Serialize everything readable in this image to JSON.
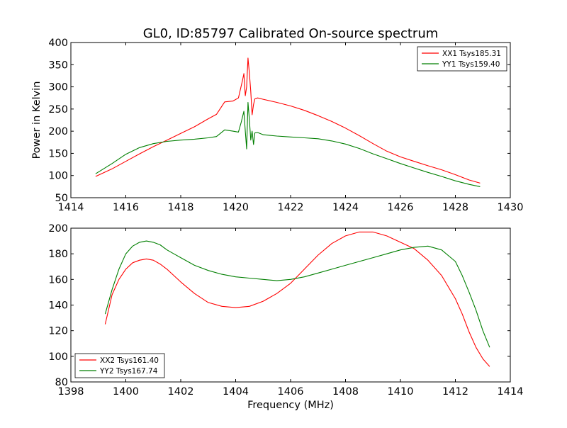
{
  "title": "GL0, ID:85797 Calibrated On-source spectrum",
  "colors": {
    "xx": "#ff0000",
    "yy": "#007f00",
    "frame": "#000000",
    "background": "#ffffff"
  },
  "chart_data": [
    {
      "type": "line",
      "title": "GL0, ID:85797 Calibrated On-source spectrum",
      "xlabel": "",
      "ylabel": "Power in Kelvin",
      "xlim": [
        1414,
        1430
      ],
      "ylim": [
        50,
        400
      ],
      "xticks": [
        1414,
        1416,
        1418,
        1420,
        1422,
        1424,
        1426,
        1428,
        1430
      ],
      "yticks": [
        50,
        100,
        150,
        200,
        250,
        300,
        350,
        400
      ],
      "grid": false,
      "legend_position": "top-right",
      "series": [
        {
          "name": "XX1 Tsys185.31",
          "color": "#ff0000",
          "x": [
            1414.9,
            1415.5,
            1416.0,
            1416.5,
            1417.0,
            1417.5,
            1418.0,
            1418.5,
            1419.0,
            1419.3,
            1419.6,
            1419.9,
            1420.1,
            1420.25,
            1420.3,
            1420.35,
            1420.4,
            1420.45,
            1420.5,
            1420.55,
            1420.6,
            1420.65,
            1420.7,
            1420.8,
            1421.0,
            1421.5,
            1422.0,
            1422.5,
            1423.0,
            1423.5,
            1424.0,
            1424.5,
            1425.0,
            1425.5,
            1426.0,
            1426.5,
            1427.0,
            1427.5,
            1428.0,
            1428.5,
            1428.9
          ],
          "y": [
            98,
            115,
            132,
            149,
            165,
            180,
            195,
            210,
            228,
            238,
            266,
            268,
            275,
            315,
            330,
            280,
            300,
            365,
            330,
            290,
            237,
            260,
            273,
            275,
            272,
            265,
            257,
            247,
            235,
            222,
            207,
            190,
            172,
            155,
            142,
            132,
            122,
            113,
            102,
            90,
            83
          ]
        },
        {
          "name": "YY1 Tsys159.40",
          "color": "#007f00",
          "x": [
            1414.9,
            1415.5,
            1416.0,
            1416.5,
            1417.0,
            1417.5,
            1418.0,
            1418.5,
            1419.0,
            1419.3,
            1419.6,
            1419.9,
            1420.1,
            1420.2,
            1420.3,
            1420.35,
            1420.4,
            1420.45,
            1420.5,
            1420.55,
            1420.6,
            1420.65,
            1420.7,
            1420.8,
            1421.0,
            1421.5,
            1422.0,
            1422.5,
            1423.0,
            1423.5,
            1424.0,
            1424.5,
            1425.0,
            1425.5,
            1426.0,
            1426.5,
            1427.0,
            1427.5,
            1428.0,
            1428.5,
            1428.9
          ],
          "y": [
            104,
            127,
            148,
            163,
            172,
            177,
            180,
            182,
            185,
            188,
            203,
            200,
            198,
            220,
            245,
            200,
            160,
            265,
            225,
            180,
            200,
            170,
            196,
            197,
            192,
            189,
            187,
            185,
            183,
            178,
            171,
            161,
            149,
            138,
            127,
            117,
            107,
            98,
            88,
            80,
            75
          ]
        }
      ]
    },
    {
      "type": "line",
      "title": "",
      "xlabel": "Frequency (MHz)",
      "ylabel": "",
      "xlim": [
        1398,
        1414
      ],
      "ylim": [
        80,
        200
      ],
      "xticks": [
        1398,
        1400,
        1402,
        1404,
        1406,
        1408,
        1410,
        1412,
        1414
      ],
      "yticks": [
        80,
        100,
        120,
        140,
        160,
        180,
        200
      ],
      "grid": false,
      "legend_position": "bottom-left",
      "series": [
        {
          "name": "XX2 Tsys161.40",
          "color": "#ff0000",
          "x": [
            1399.25,
            1399.5,
            1399.75,
            1400.0,
            1400.25,
            1400.5,
            1400.75,
            1401.0,
            1401.25,
            1401.5,
            1401.75,
            1402.0,
            1402.5,
            1403.0,
            1403.5,
            1404.0,
            1404.5,
            1405.0,
            1405.5,
            1406.0,
            1406.5,
            1407.0,
            1407.5,
            1408.0,
            1408.5,
            1409.0,
            1409.5,
            1410.0,
            1410.5,
            1411.0,
            1411.5,
            1412.0,
            1412.25,
            1412.5,
            1412.75,
            1413.0,
            1413.25
          ],
          "y": [
            125,
            148,
            160,
            168,
            173,
            175,
            176,
            175,
            172,
            168,
            163,
            158,
            149,
            142,
            139,
            138,
            139,
            143,
            149,
            157,
            168,
            179,
            188,
            194,
            197,
            197,
            194,
            189,
            184,
            175,
            163,
            145,
            133,
            119,
            107,
            98,
            92
          ]
        },
        {
          "name": "YY2 Tsys167.74",
          "color": "#007f00",
          "x": [
            1399.25,
            1399.5,
            1399.75,
            1400.0,
            1400.25,
            1400.5,
            1400.75,
            1401.0,
            1401.25,
            1401.5,
            1401.75,
            1402.0,
            1402.5,
            1403.0,
            1403.5,
            1404.0,
            1404.5,
            1405.0,
            1405.5,
            1406.0,
            1406.5,
            1407.0,
            1407.5,
            1408.0,
            1408.5,
            1409.0,
            1409.5,
            1410.0,
            1410.5,
            1411.0,
            1411.5,
            1412.0,
            1412.25,
            1412.5,
            1412.75,
            1413.0,
            1413.25
          ],
          "y": [
            133,
            152,
            168,
            180,
            186,
            189,
            190,
            189,
            187,
            183,
            180,
            177,
            171,
            167,
            164,
            162,
            161,
            160,
            159,
            160,
            162,
            165,
            168,
            171,
            174,
            177,
            180,
            183,
            185,
            186,
            183,
            174,
            163,
            150,
            136,
            120,
            107
          ]
        }
      ]
    }
  ]
}
